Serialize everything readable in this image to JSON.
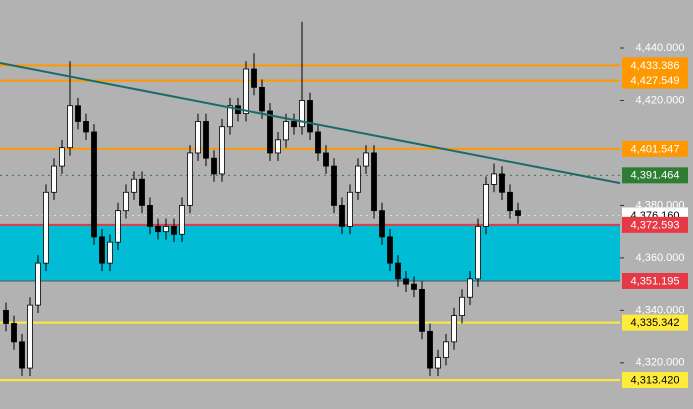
{
  "chart_data": {
    "type": "candlestick",
    "ylim": [
      4302.4,
      4458.3
    ],
    "yticks": [
      {
        "value": 4440,
        "label": "4,440.000"
      },
      {
        "value": 4420,
        "label": "4,420.000"
      },
      {
        "value": 4380,
        "label": "4,380.000"
      },
      {
        "value": 4360,
        "label": "4,360.000"
      },
      {
        "value": 4340,
        "label": "4,340.000"
      },
      {
        "value": 4320,
        "label": "4,320.000"
      }
    ],
    "up_color": "#ffffff",
    "down_color": "#000000",
    "open": [
      4340,
      4335,
      4328,
      4318,
      4342,
      4358,
      4385,
      4395,
      4402,
      4418,
      4412,
      4408,
      4368,
      4358,
      4366,
      4378,
      4385,
      4390,
      4380,
      4372,
      4370,
      4372,
      4369,
      4380,
      4400,
      4412,
      4398,
      4392,
      4410,
      4418,
      4415,
      4432,
      4425,
      4416,
      4400,
      4405,
      4412,
      4410,
      4420,
      4408,
      4400,
      4395,
      4380,
      4372,
      4385,
      4395,
      4400,
      4378,
      4368,
      4358,
      4352,
      4350,
      4348,
      4332,
      4318,
      4322,
      4328,
      4338,
      4345,
      4352,
      4372,
      4388,
      4392,
      4385,
      4378
    ],
    "high": [
      4343,
      4338,
      4331,
      4345,
      4361,
      4388,
      4398,
      4405,
      4435,
      4421,
      4415,
      4411,
      4371,
      4369,
      4381,
      4388,
      4393,
      4393,
      4383,
      4375,
      4375,
      4375,
      4383,
      4403,
      4415,
      4415,
      4401,
      4413,
      4421,
      4421,
      4435,
      4438,
      4428,
      4419,
      4408,
      4415,
      4415,
      4450,
      4423,
      4411,
      4403,
      4398,
      4383,
      4388,
      4398,
      4403,
      4403,
      4381,
      4371,
      4361,
      4355,
      4353,
      4351,
      4335,
      4325,
      4331,
      4341,
      4348,
      4355,
      4375,
      4391,
      4396,
      4395,
      4388,
      4381
    ],
    "low": [
      4332,
      4325,
      4315,
      4315,
      4339,
      4355,
      4382,
      4392,
      4399,
      4409,
      4405,
      4365,
      4355,
      4355,
      4363,
      4375,
      4382,
      4377,
      4369,
      4367,
      4367,
      4366,
      4366,
      4377,
      4397,
      4395,
      4389,
      4389,
      4407,
      4412,
      4412,
      4422,
      4413,
      4397,
      4397,
      4402,
      4407,
      4407,
      4405,
      4397,
      4392,
      4377,
      4369,
      4369,
      4382,
      4392,
      4375,
      4365,
      4355,
      4349,
      4347,
      4345,
      4329,
      4315,
      4315,
      4319,
      4325,
      4335,
      4342,
      4349,
      4369,
      4385,
      4382,
      4375,
      4373
    ],
    "close": [
      4335,
      4328,
      4318,
      4342,
      4358,
      4385,
      4395,
      4402,
      4418,
      4412,
      4408,
      4368,
      4358,
      4366,
      4378,
      4385,
      4390,
      4380,
      4372,
      4370,
      4372,
      4369,
      4380,
      4400,
      4412,
      4398,
      4392,
      4410,
      4418,
      4415,
      4432,
      4425,
      4416,
      4400,
      4405,
      4412,
      4410,
      4420,
      4408,
      4400,
      4395,
      4380,
      4372,
      4385,
      4395,
      4400,
      4378,
      4368,
      4358,
      4352,
      4350,
      4348,
      4332,
      4318,
      4322,
      4328,
      4338,
      4345,
      4352,
      4372,
      4388,
      4392,
      4385,
      4378,
      4376.16
    ],
    "zone": {
      "from": 4372.593,
      "to": 4351.195,
      "color": "#00bcd4"
    },
    "trendline": {
      "x": [
        -0.75,
        76.75
      ],
      "y": [
        4434.3,
        4388.5
      ],
      "color": "#1b6b6b"
    },
    "levels": [
      {
        "value": 4433.386,
        "label": "4,433.386",
        "color": "#ff9800",
        "style": "solid"
      },
      {
        "value": 4427.549,
        "label": "4,427.549",
        "color": "#ff9800",
        "style": "solid"
      },
      {
        "value": 4401.547,
        "label": "4,401.547",
        "color": "#ff9800",
        "style": "solid"
      },
      {
        "value": 4391.464,
        "label": "4,391.464",
        "color": "#2e7d32",
        "style": "dotted"
      },
      {
        "value": 4376.16,
        "label": "4,376.160",
        "color": "#ffffff",
        "style": "dotted"
      },
      {
        "value": 4372.593,
        "label": "4,372.593",
        "color": "#e53945",
        "style": "solid"
      },
      {
        "value": 4351.195,
        "label": "4,351.195",
        "color": "#e53945",
        "style": "none"
      },
      {
        "value": 4335.342,
        "label": "4,335.342",
        "color": "#ffeb3b",
        "style": "solid"
      },
      {
        "value": 4313.42,
        "label": "4,313.420",
        "color": "#ffeb3b",
        "style": "solid"
      }
    ]
  }
}
